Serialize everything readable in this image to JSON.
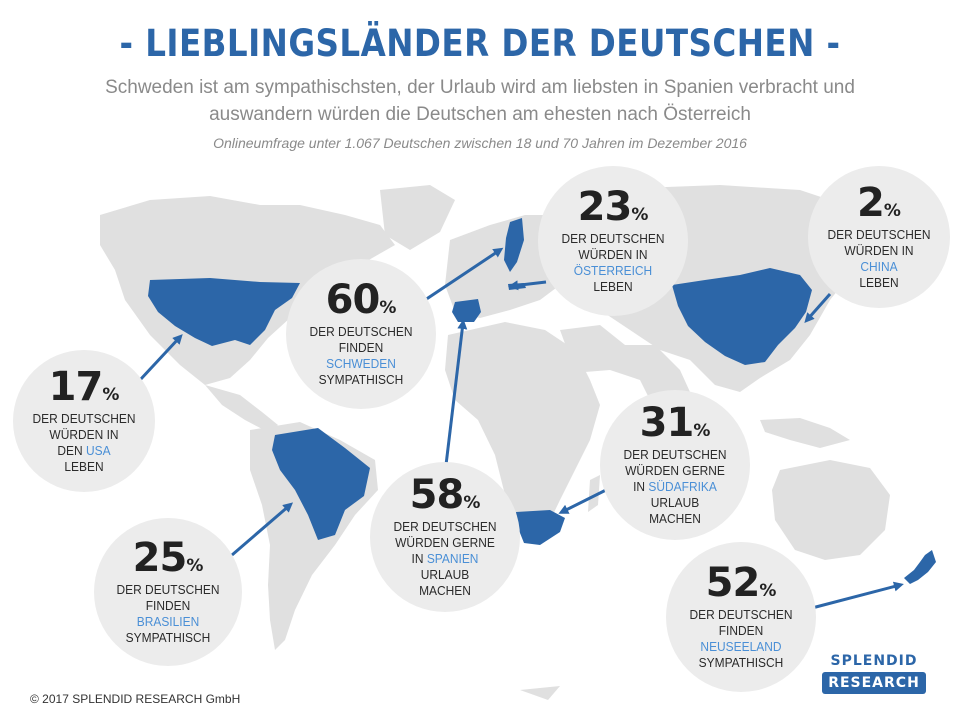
{
  "header": {
    "title": "- LIEBLINGSLÄNDER DER DEUTSCHEN -",
    "subtitle_line1": "Schweden ist am sympathischsten, der Urlaub wird am liebsten in Spanien verbracht und",
    "subtitle_line2": "auswandern würden die Deutschen am ehesten nach Österreich",
    "note": "Onlineumfrage unter 1.067 Deutschen zwischen 18 und 70 Jahren im Dezember 2016"
  },
  "colors": {
    "accent": "#2c66a8",
    "highlight": "#4a8fd6",
    "map_land": "#e0e0e0",
    "bubble": "#ececec"
  },
  "stats": [
    {
      "id": "usa",
      "value": "17",
      "unit": "%",
      "lines_before": [
        "DER DEUTSCHEN",
        "WÜRDEN IN",
        "DEN "
      ],
      "country": "USA",
      "lines_after": [
        "LEBEN"
      ],
      "country_inline": true
    },
    {
      "id": "brasilien",
      "value": "25",
      "unit": "%",
      "lines_before": [
        "DER DEUTSCHEN",
        "FINDEN"
      ],
      "country": "BRASILIEN",
      "lines_after": [
        "SYMPATHISCH"
      ],
      "country_inline": false
    },
    {
      "id": "schweden",
      "value": "60",
      "unit": "%",
      "lines_before": [
        "DER DEUTSCHEN",
        "FINDEN"
      ],
      "country": "SCHWEDEN",
      "lines_after": [
        "SYMPATHISCH"
      ],
      "country_inline": false
    },
    {
      "id": "spanien",
      "value": "58",
      "unit": "%",
      "lines_before": [
        "DER DEUTSCHEN",
        "WÜRDEN GERNE",
        "IN "
      ],
      "country": "SPANIEN",
      "lines_after": [
        "URLAUB",
        "MACHEN"
      ],
      "country_inline": true
    },
    {
      "id": "oesterreich",
      "value": "23",
      "unit": "%",
      "lines_before": [
        "DER DEUTSCHEN",
        "WÜRDEN IN"
      ],
      "country": "ÖSTERREICH",
      "lines_after": [
        "LEBEN"
      ],
      "country_inline": false
    },
    {
      "id": "china",
      "value": "2",
      "unit": "%",
      "lines_before": [
        "DER DEUTSCHEN",
        "WÜRDEN IN"
      ],
      "country": "CHINA",
      "lines_after": [
        "LEBEN"
      ],
      "country_inline": false
    },
    {
      "id": "suedafrika",
      "value": "31",
      "unit": "%",
      "lines_before": [
        "DER DEUTSCHEN",
        "WÜRDEN GERNE",
        "IN "
      ],
      "country": "SÜDAFRIKA",
      "lines_after": [
        "URLAUB",
        "MACHEN"
      ],
      "country_inline": true
    },
    {
      "id": "neuseeland",
      "value": "52",
      "unit": "%",
      "lines_before": [
        "DER DEUTSCHEN",
        "FINDEN"
      ],
      "country": "NEUSEELAND",
      "lines_after": [
        "SYMPATHISCH"
      ],
      "country_inline": false
    }
  ],
  "footer": {
    "copyright": "© 2017 SPLENDID RESEARCH GmbH",
    "logo_line1": "SPLENDID",
    "logo_line2": "RESEARCH"
  }
}
